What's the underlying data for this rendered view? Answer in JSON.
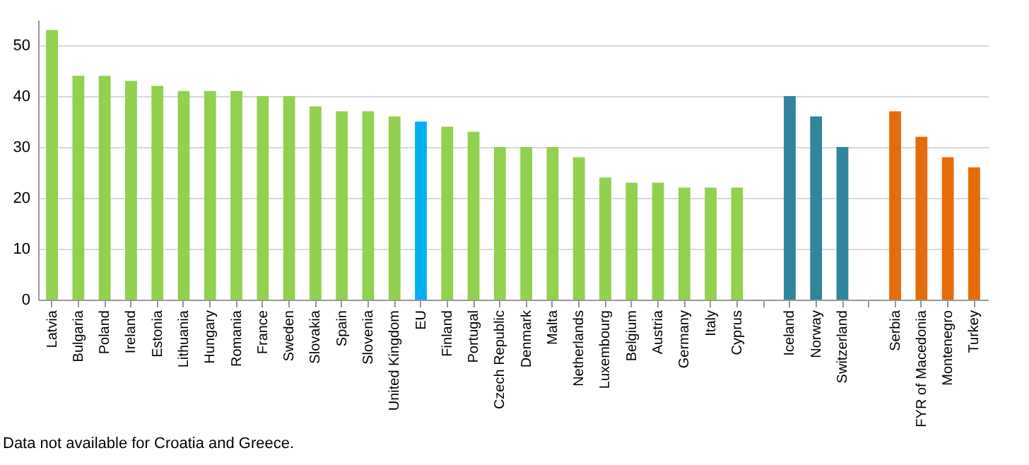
{
  "chart_data": {
    "type": "bar",
    "categories": [
      "Latvia",
      "Bulgaria",
      "Poland",
      "Ireland",
      "Estonia",
      "Lithuania",
      "Hungary",
      "Romania",
      "France",
      "Sweden",
      "Slovakia",
      "Spain",
      "Slovenia",
      "United Kingdom",
      "EU",
      "Finland",
      "Portugal",
      "Czech Republic",
      "Denmark",
      "Malta",
      "Netherlands",
      "Luxembourg",
      "Belgium",
      "Austria",
      "Germany",
      "Italy",
      "Cyprus",
      null,
      "Iceland",
      "Norway",
      "Switzerland",
      null,
      "Serbia",
      "FYR of Macedonia",
      "Montenegro",
      "Turkey"
    ],
    "values": [
      53,
      44,
      44,
      43,
      42,
      41,
      41,
      41,
      40,
      40,
      38,
      37,
      37,
      36,
      35,
      34,
      33,
      30,
      30,
      30,
      28,
      24,
      23,
      23,
      22,
      22,
      22,
      null,
      40,
      36,
      30,
      null,
      37,
      32,
      28,
      26
    ],
    "colors": [
      "#92d050",
      "#92d050",
      "#92d050",
      "#92d050",
      "#92d050",
      "#92d050",
      "#92d050",
      "#92d050",
      "#92d050",
      "#92d050",
      "#92d050",
      "#92d050",
      "#92d050",
      "#92d050",
      "#00b0f0",
      "#92d050",
      "#92d050",
      "#92d050",
      "#92d050",
      "#92d050",
      "#92d050",
      "#92d050",
      "#92d050",
      "#92d050",
      "#92d050",
      "#92d050",
      "#92d050",
      "#92d050",
      "#31849b",
      "#31849b",
      "#31849b",
      "#e46c0a",
      "#e46c0a",
      "#e46c0a",
      "#e46c0a",
      "#e46c0a"
    ],
    "ylim": [
      0,
      55
    ],
    "yticks": [
      0,
      10,
      20,
      30,
      40,
      50
    ],
    "grid": "y",
    "annotations": [
      "Data not available for Croatia and Greece."
    ]
  }
}
